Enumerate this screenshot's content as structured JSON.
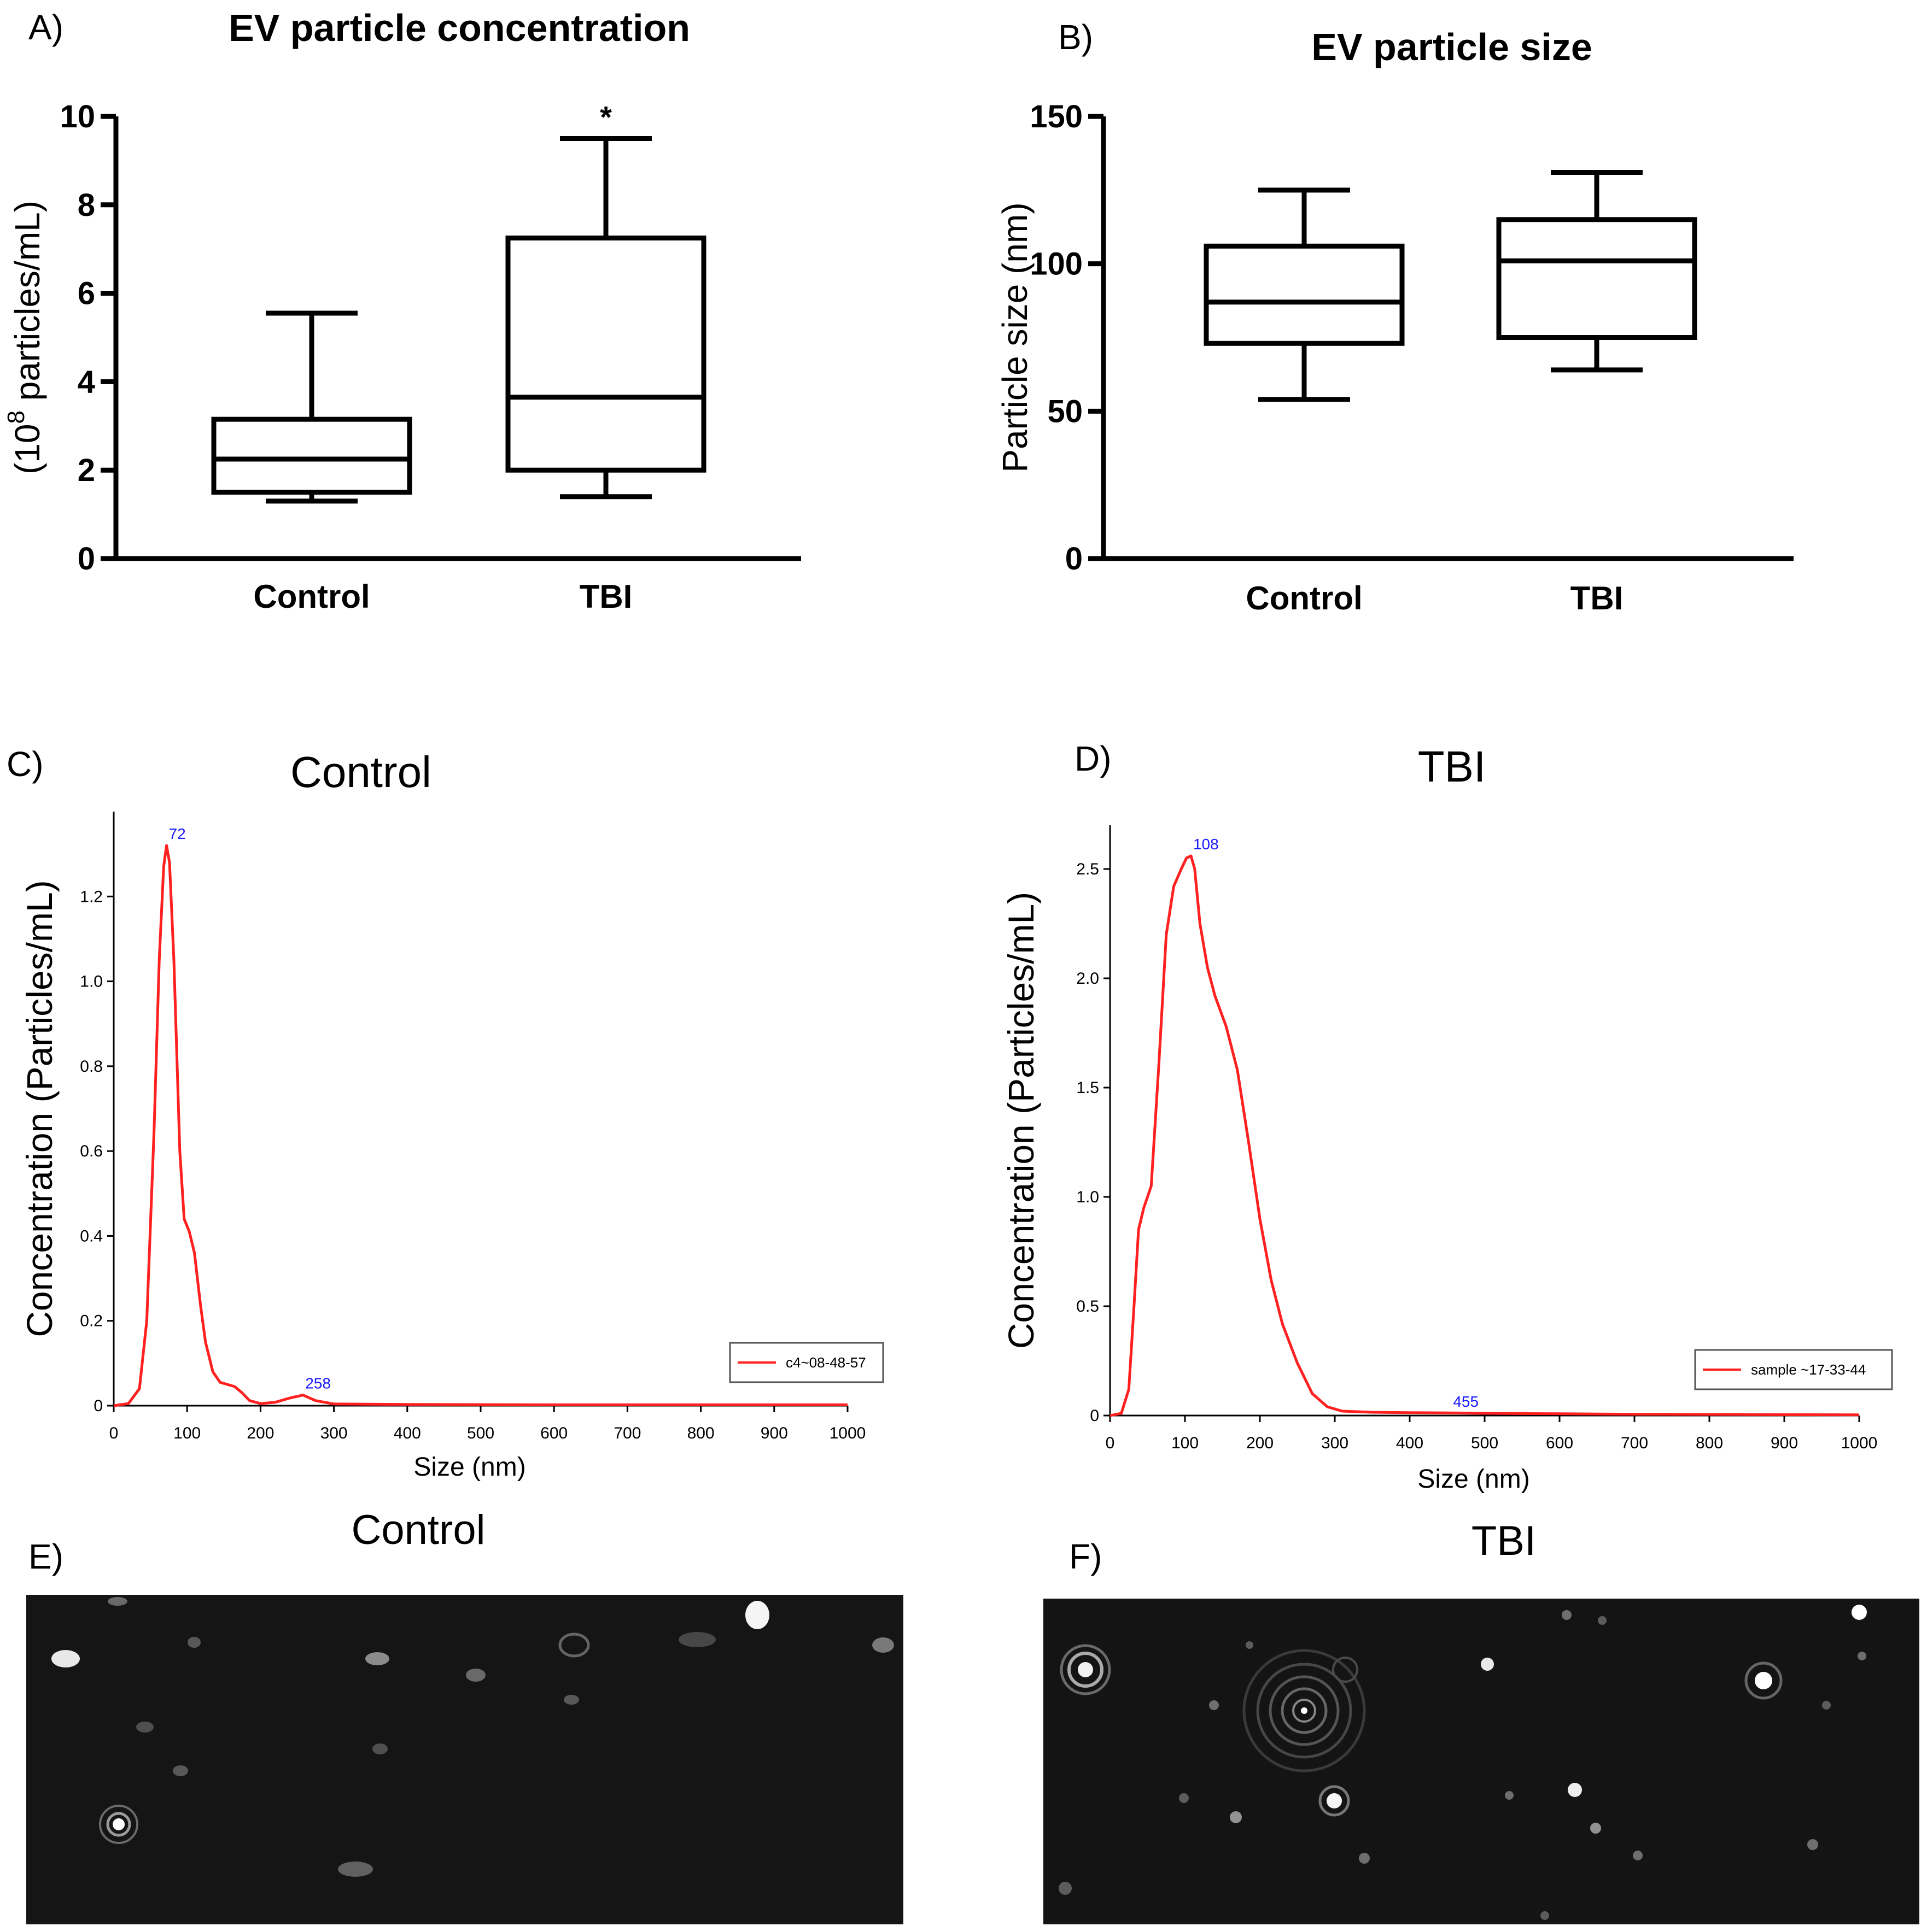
{
  "panels": {
    "a": {
      "letter": "A)"
    },
    "b": {
      "letter": "B)"
    },
    "c": {
      "letter": "C)"
    },
    "d": {
      "letter": "D)"
    },
    "e": {
      "letter": "E)",
      "title": "Control"
    },
    "f": {
      "letter": "F)",
      "title": "TBI"
    }
  },
  "colors": {
    "curve": "#ff2020",
    "peak_label": "#1a1aff",
    "axis": "#000000",
    "image_bg": "#141414"
  },
  "chart_data": [
    {
      "id": "a",
      "type": "box",
      "title": "EV particle concentration",
      "ylabel_main": "(10",
      "ylabel_sup": "8",
      "ylabel_rest": " particles/mL)",
      "ylim": [
        0,
        10
      ],
      "yticks": [
        "0",
        "2",
        "4",
        "6",
        "8",
        "10"
      ],
      "categories": [
        "Control",
        "TBI"
      ],
      "boxes": [
        {
          "name": "Control",
          "min": 1.3,
          "q1": 1.5,
          "median": 2.25,
          "q3": 3.15,
          "max": 5.55,
          "annotation": ""
        },
        {
          "name": "TBI",
          "min": 1.4,
          "q1": 2.0,
          "median": 3.65,
          "q3": 7.25,
          "max": 9.5,
          "annotation": "*"
        }
      ]
    },
    {
      "id": "b",
      "type": "box",
      "title": "EV particle size",
      "ylabel": "Particle size (nm)",
      "ylim": [
        0,
        150
      ],
      "yticks": [
        "0",
        "50",
        "100",
        "150"
      ],
      "categories": [
        "Control",
        "TBI"
      ],
      "boxes": [
        {
          "name": "Control",
          "min": 54,
          "q1": 73,
          "median": 87,
          "q3": 106,
          "max": 125,
          "annotation": ""
        },
        {
          "name": "TBI",
          "min": 64,
          "q1": 75,
          "median": 101,
          "q3": 115,
          "max": 131,
          "annotation": ""
        }
      ]
    },
    {
      "id": "c",
      "type": "line",
      "title": "Control",
      "xlabel": "Size (nm)",
      "ylabel": "Concentration (Particles/mL)",
      "xlim": [
        0,
        1000
      ],
      "ylim": [
        0,
        1.4
      ],
      "xticks": [
        "0",
        "100",
        "200",
        "300",
        "400",
        "500",
        "600",
        "700",
        "800",
        "900",
        "1000"
      ],
      "yticks": [
        "0",
        "0.2",
        "0.4",
        "0.6",
        "0.8",
        "1.0",
        "1.2"
      ],
      "legend": "c4~08-48-57",
      "peaks": [
        {
          "x": 72,
          "y": 1.32,
          "label": "72"
        },
        {
          "x": 258,
          "y": 0.025,
          "label": "258"
        }
      ],
      "x": [
        0,
        20,
        35,
        45,
        55,
        62,
        68,
        72,
        76,
        82,
        90,
        96,
        103,
        110,
        118,
        125,
        135,
        145,
        155,
        165,
        175,
        185,
        200,
        220,
        240,
        258,
        275,
        300,
        400,
        600,
        800,
        1000
      ],
      "y": [
        0,
        0.005,
        0.04,
        0.2,
        0.65,
        1.05,
        1.27,
        1.32,
        1.28,
        1.05,
        0.6,
        0.44,
        0.41,
        0.36,
        0.24,
        0.15,
        0.08,
        0.055,
        0.05,
        0.045,
        0.03,
        0.012,
        0.005,
        0.008,
        0.018,
        0.025,
        0.012,
        0.004,
        0.003,
        0.002,
        0.002,
        0.002
      ]
    },
    {
      "id": "d",
      "type": "line",
      "title": "TBI",
      "xlabel": "Size (nm)",
      "ylabel": "Concentration (Particles/mL)",
      "xlim": [
        0,
        1000
      ],
      "ylim": [
        0,
        2.7
      ],
      "xticks": [
        "0",
        "100",
        "200",
        "300",
        "400",
        "500",
        "600",
        "700",
        "800",
        "900",
        "1000"
      ],
      "yticks": [
        "0",
        "0.5",
        "1.0",
        "1.5",
        "2.0",
        "2.5"
      ],
      "legend": "sample ~17-33-44",
      "peaks": [
        {
          "x": 108,
          "y": 2.56,
          "label": "108"
        },
        {
          "x": 455,
          "y": 0.01,
          "label": "455"
        }
      ],
      "x": [
        0,
        15,
        25,
        32,
        38,
        45,
        55,
        65,
        75,
        85,
        95,
        102,
        108,
        113,
        120,
        130,
        140,
        155,
        170,
        185,
        200,
        215,
        230,
        250,
        270,
        290,
        310,
        350,
        400,
        455,
        500,
        600,
        700,
        800,
        1000
      ],
      "y": [
        0,
        0.01,
        0.12,
        0.5,
        0.85,
        0.95,
        1.05,
        1.6,
        2.2,
        2.42,
        2.5,
        2.55,
        2.56,
        2.5,
        2.25,
        2.05,
        1.92,
        1.78,
        1.58,
        1.25,
        0.9,
        0.62,
        0.42,
        0.24,
        0.1,
        0.04,
        0.02,
        0.015,
        0.013,
        0.012,
        0.01,
        0.008,
        0.006,
        0.005,
        0.003
      ]
    }
  ]
}
